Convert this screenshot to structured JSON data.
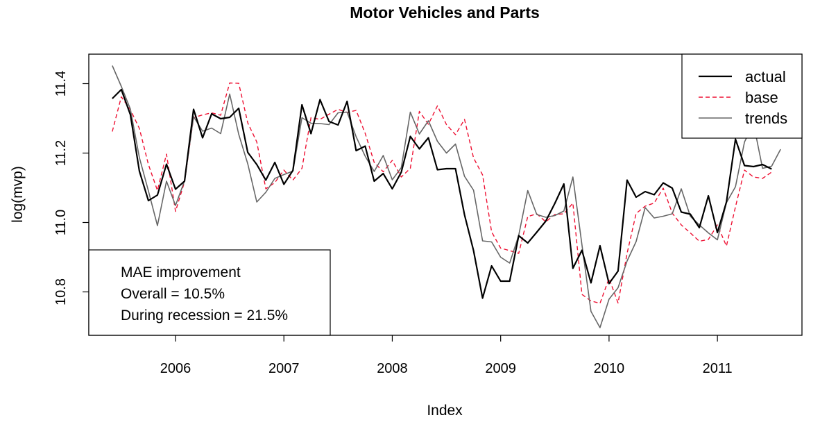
{
  "chart_data": {
    "type": "line",
    "title": "Motor Vehicles and Parts",
    "xlabel": "Index",
    "ylabel": "log(mvp)",
    "xlim": [
      2005.2,
      2011.78
    ],
    "ylim": [
      10.675,
      11.485
    ],
    "x_ticks": [
      2006,
      2007,
      2008,
      2009,
      2010,
      2011
    ],
    "x_tick_labels": [
      "2006",
      "2007",
      "2008",
      "2009",
      "2010",
      "2011"
    ],
    "y_ticks": [
      10.8,
      11.0,
      11.2,
      11.4
    ],
    "y_tick_labels": [
      "10.8",
      "11.0",
      "11.2",
      "11.4"
    ],
    "grid": false,
    "legend_position": "top-right",
    "x_start": 2005.4167,
    "x_step": 0.08333,
    "series": [
      {
        "name": "actual",
        "color": "#000000",
        "dash": "solid",
        "values": [
          11.357,
          11.383,
          11.311,
          11.148,
          11.063,
          11.079,
          11.168,
          11.096,
          11.119,
          11.326,
          11.244,
          11.313,
          11.299,
          11.303,
          11.329,
          11.202,
          11.167,
          11.122,
          11.173,
          11.11,
          11.15,
          11.339,
          11.256,
          11.354,
          11.291,
          11.281,
          11.349,
          11.207,
          11.22,
          11.119,
          11.141,
          11.097,
          11.145,
          11.248,
          11.212,
          11.244,
          11.152,
          11.155,
          11.155,
          11.022,
          10.919,
          10.782,
          10.875,
          10.831,
          10.831,
          10.962,
          10.941,
          10.972,
          11.004,
          11.055,
          11.111,
          10.868,
          10.92,
          10.826,
          10.933,
          10.824,
          10.86,
          11.122,
          11.073,
          11.089,
          11.08,
          11.114,
          11.099,
          11.03,
          11.024,
          10.985,
          11.077,
          10.971,
          11.059,
          11.24,
          11.164,
          11.161,
          11.167,
          11.154
        ]
      },
      {
        "name": "base",
        "color": "#ee1133",
        "dash": "dashed",
        "values": [
          11.262,
          11.362,
          11.325,
          11.271,
          11.167,
          11.092,
          11.197,
          11.032,
          11.117,
          11.302,
          11.31,
          11.316,
          11.309,
          11.402,
          11.401,
          11.287,
          11.232,
          11.097,
          11.115,
          11.151,
          11.122,
          11.156,
          11.302,
          11.297,
          11.312,
          11.326,
          11.317,
          11.323,
          11.257,
          11.173,
          11.146,
          11.179,
          11.131,
          11.156,
          11.32,
          11.283,
          11.336,
          11.282,
          11.253,
          11.297,
          11.186,
          11.137,
          10.973,
          10.926,
          10.919,
          10.911,
          11.017,
          11.025,
          11.002,
          11.023,
          11.025,
          11.056,
          10.793,
          10.774,
          10.767,
          10.839,
          10.768,
          10.911,
          11.026,
          11.047,
          11.056,
          11.099,
          11.027,
          10.993,
          10.97,
          10.946,
          10.951,
          10.993,
          10.932,
          11.045,
          11.151,
          11.131,
          11.127,
          11.145
        ]
      },
      {
        "name": "trends",
        "color": "#666666",
        "dash": "solid",
        "values": [
          11.452,
          11.392,
          11.327,
          11.187,
          11.091,
          10.991,
          11.119,
          11.049,
          11.12,
          11.305,
          11.263,
          11.272,
          11.256,
          11.37,
          11.254,
          11.169,
          11.059,
          11.087,
          11.127,
          11.138,
          11.148,
          11.302,
          11.286,
          11.285,
          11.282,
          11.316,
          11.318,
          11.247,
          11.191,
          11.147,
          11.193,
          11.123,
          11.158,
          11.318,
          11.255,
          11.293,
          11.234,
          11.2,
          11.226,
          11.133,
          11.093,
          10.947,
          10.944,
          10.9,
          10.883,
          10.963,
          11.092,
          11.023,
          11.015,
          11.02,
          11.033,
          11.131,
          10.936,
          10.744,
          10.697,
          10.779,
          10.812,
          10.889,
          10.945,
          11.043,
          11.013,
          11.018,
          11.025,
          11.097,
          11.018,
          10.993,
          10.97,
          10.95,
          11.057,
          11.103,
          11.232,
          11.285,
          11.156,
          11.162,
          11.211
        ]
      }
    ],
    "annotation": {
      "lines": [
        "MAE improvement",
        "Overall = 10.5%",
        "During recession = 21.5%"
      ],
      "position": "bottom-left"
    }
  }
}
